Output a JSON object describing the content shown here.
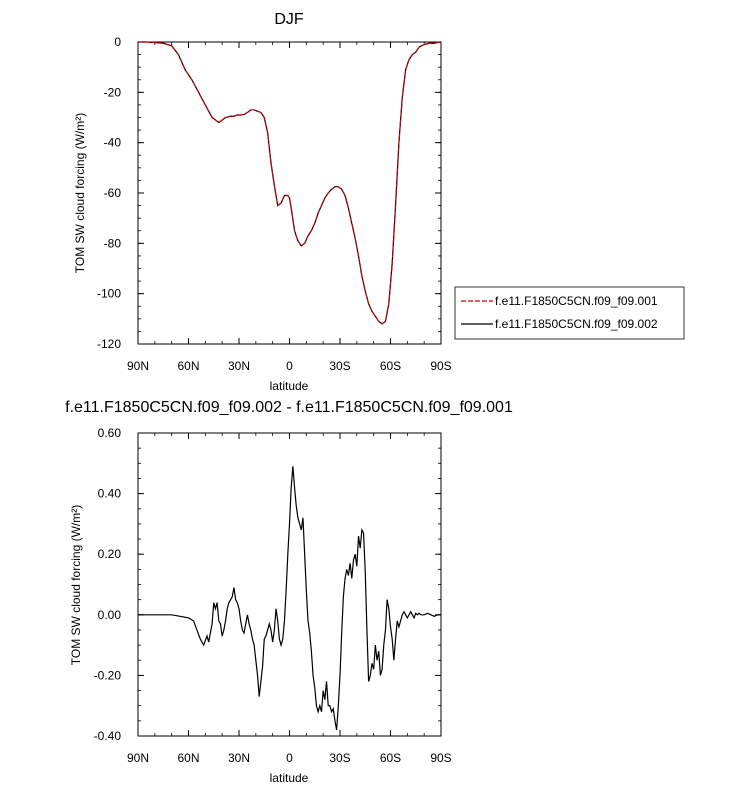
{
  "chart_data": [
    {
      "type": "line",
      "title": "DJF",
      "xlabel": "latitude",
      "ylabel": "TOM SW cloud forcing (W/m²)",
      "xlim": [
        90,
        -90
      ],
      "ylim": [
        -120,
        0
      ],
      "x_ticks": [
        90,
        60,
        30,
        0,
        -30,
        -60,
        -90
      ],
      "x_tick_labels": [
        "90N",
        "60N",
        "30N",
        "0",
        "30S",
        "60S",
        "90S"
      ],
      "y_ticks": [
        0,
        -20,
        -40,
        -60,
        -80,
        -100,
        -120
      ],
      "y_tick_labels": [
        "0",
        "-20",
        "-40",
        "-60",
        "-80",
        "-100",
        "-120"
      ],
      "grid": false,
      "legend": "right",
      "x": [
        90,
        85,
        80,
        75,
        70,
        66,
        62,
        58,
        54,
        50,
        46,
        42,
        38,
        35,
        33,
        31,
        29,
        27,
        25,
        23,
        21,
        19,
        17,
        15,
        13,
        11,
        9,
        7,
        5,
        3,
        1,
        0,
        -1,
        -3,
        -5,
        -7,
        -9,
        -11,
        -13,
        -15,
        -17,
        -19,
        -21,
        -23,
        -25,
        -27,
        -29,
        -31,
        -33,
        -35,
        -37,
        -39,
        -41,
        -43,
        -45,
        -47,
        -49,
        -51,
        -53,
        -55,
        -57,
        -59,
        -61,
        -63,
        -65,
        -67,
        -69,
        -71,
        -73,
        -75,
        -77,
        -80,
        -83,
        -86,
        -88,
        -90
      ],
      "series": [
        {
          "name": "f.e11.F1850C5CN.f09_f09.001",
          "color": "#cc0000",
          "dash": true,
          "values": [
            0,
            0,
            -0.2,
            -0.5,
            -1.5,
            -5,
            -11,
            -15,
            -20,
            -25,
            -30,
            -32,
            -30,
            -29.5,
            -29.5,
            -29,
            -29,
            -28.8,
            -28,
            -27,
            -27,
            -27.5,
            -28,
            -30,
            -36,
            -48,
            -57,
            -65,
            -64,
            -61,
            -61,
            -62,
            -66,
            -75,
            -79,
            -81,
            -80,
            -77,
            -75,
            -72,
            -68,
            -65,
            -62,
            -60,
            -58.5,
            -57.5,
            -57.5,
            -58.5,
            -61,
            -66,
            -72,
            -78,
            -85,
            -93,
            -99,
            -104,
            -107,
            -109,
            -111,
            -112,
            -111,
            -104,
            -88,
            -65,
            -40,
            -22,
            -11,
            -7,
            -5,
            -4,
            -2,
            -1,
            -0.5,
            -0.5,
            -0.2,
            0
          ]
        },
        {
          "name": "f.e11.F1850C5CN.f09_f09.002",
          "color": "#000000",
          "dash": false,
          "values": [
            0,
            0,
            -0.2,
            -0.5,
            -1.5,
            -5,
            -11,
            -15,
            -20,
            -25,
            -30,
            -32,
            -30,
            -29.5,
            -29.5,
            -29,
            -29,
            -28.8,
            -28,
            -27,
            -27,
            -27.5,
            -28,
            -30,
            -36,
            -48,
            -57,
            -65,
            -64,
            -61,
            -61,
            -62,
            -66,
            -75,
            -79,
            -81,
            -80,
            -77,
            -75,
            -72,
            -68,
            -65,
            -62,
            -60,
            -58.5,
            -57.5,
            -57.5,
            -58.5,
            -61,
            -66,
            -72,
            -78,
            -85,
            -93,
            -99,
            -104,
            -107,
            -109,
            -111,
            -112,
            -111,
            -104,
            -88,
            -65,
            -40,
            -22,
            -11,
            -7,
            -5,
            -4,
            -2,
            -1,
            -0.5,
            -0.5,
            -0.2,
            0
          ]
        }
      ]
    },
    {
      "type": "line",
      "title": "f.e11.F1850C5CN.f09_f09.002 - f.e11.F1850C5CN.f09_f09.001",
      "xlabel": "latitude",
      "ylabel": "TOM SW cloud forcing (W/m²)",
      "xlim": [
        90,
        -90
      ],
      "ylim": [
        -0.4,
        0.6
      ],
      "x_ticks": [
        90,
        60,
        30,
        0,
        -30,
        -60,
        -90
      ],
      "x_tick_labels": [
        "90N",
        "60N",
        "30N",
        "0",
        "30S",
        "60S",
        "90S"
      ],
      "y_ticks": [
        0.6,
        0.4,
        0.2,
        0,
        -0.2,
        -0.4
      ],
      "y_tick_labels": [
        "0.60",
        "0.40",
        "0.20",
        "0.00",
        "-0.20",
        "-0.40"
      ],
      "grid": false,
      "series": [
        {
          "color": "#000000",
          "x": [
            90,
            80,
            70,
            65,
            60,
            57,
            55,
            53,
            51,
            49,
            48,
            47,
            46,
            45,
            44,
            43,
            42,
            41,
            40,
            39,
            38,
            37,
            36,
            35,
            34,
            33,
            32,
            31,
            30,
            29,
            28,
            27,
            26,
            25,
            24,
            23,
            22,
            21,
            20,
            19,
            18,
            17,
            16,
            15,
            14,
            13,
            12,
            11,
            10,
            9,
            8,
            7,
            6,
            5,
            4,
            3,
            2,
            1,
            0,
            -1,
            -2,
            -3,
            -4,
            -5,
            -6,
            -7,
            -8,
            -9,
            -10,
            -11,
            -12,
            -13,
            -14,
            -15,
            -16,
            -17,
            -18,
            -19,
            -20,
            -21,
            -22,
            -23,
            -24,
            -25,
            -26,
            -27,
            -28,
            -29,
            -30,
            -31,
            -32,
            -33,
            -34,
            -35,
            -36,
            -37,
            -38,
            -39,
            -40,
            -41,
            -42,
            -43,
            -44,
            -45,
            -46,
            -47,
            -48,
            -49,
            -50,
            -51,
            -52,
            -53,
            -54,
            -55,
            -56,
            -57,
            -58,
            -59,
            -60,
            -61,
            -62,
            -63,
            -64,
            -65,
            -66,
            -67,
            -68,
            -69,
            -70,
            -71,
            -72,
            -73,
            -74,
            -75,
            -76,
            -77,
            -78,
            -80,
            -82,
            -84,
            -86,
            -88,
            -90
          ],
          "values": [
            0,
            0,
            0,
            -0.005,
            -0.01,
            -0.02,
            -0.05,
            -0.08,
            -0.1,
            -0.07,
            -0.09,
            -0.06,
            -0.03,
            0.04,
            0.02,
            0.04,
            -0.02,
            -0.03,
            -0.07,
            -0.05,
            -0.02,
            0.02,
            0.04,
            0.05,
            0.06,
            0.09,
            0.05,
            0.04,
            0.02,
            -0.02,
            -0.05,
            -0.06,
            -0.03,
            0,
            -0.03,
            -0.05,
            -0.08,
            -0.1,
            -0.15,
            -0.2,
            -0.27,
            -0.22,
            -0.17,
            -0.08,
            -0.07,
            -0.05,
            -0.03,
            -0.05,
            -0.09,
            -0.05,
            0.02,
            -0.02,
            -0.08,
            -0.1,
            -0.08,
            -0.02,
            0.08,
            0.2,
            0.3,
            0.42,
            0.49,
            0.42,
            0.36,
            0.32,
            0.3,
            0.28,
            0.32,
            0.2,
            0.08,
            -0.02,
            -0.06,
            -0.12,
            -0.2,
            -0.24,
            -0.3,
            -0.32,
            -0.3,
            -0.32,
            -0.25,
            -0.28,
            -0.22,
            -0.3,
            -0.3,
            -0.32,
            -0.31,
            -0.35,
            -0.38,
            -0.3,
            -0.2,
            -0.06,
            0.06,
            0.12,
            0.15,
            0.13,
            0.17,
            0.12,
            0.18,
            0.2,
            0.16,
            0.26,
            0.22,
            0.28,
            0.27,
            0.14,
            -0.05,
            -0.22,
            -0.2,
            -0.16,
            -0.18,
            -0.1,
            -0.15,
            -0.12,
            -0.2,
            -0.18,
            -0.1,
            -0.05,
            0.05,
            0.02,
            -0.04,
            -0.08,
            -0.15,
            -0.08,
            -0.02,
            -0.04,
            -0.02,
            0,
            0.01,
            0,
            -0.01,
            0,
            0.01,
            0,
            -0.01,
            0.005,
            0,
            0.005,
            0,
            0,
            0.005,
            0,
            -0.005,
            0,
            0
          ]
        }
      ]
    }
  ]
}
